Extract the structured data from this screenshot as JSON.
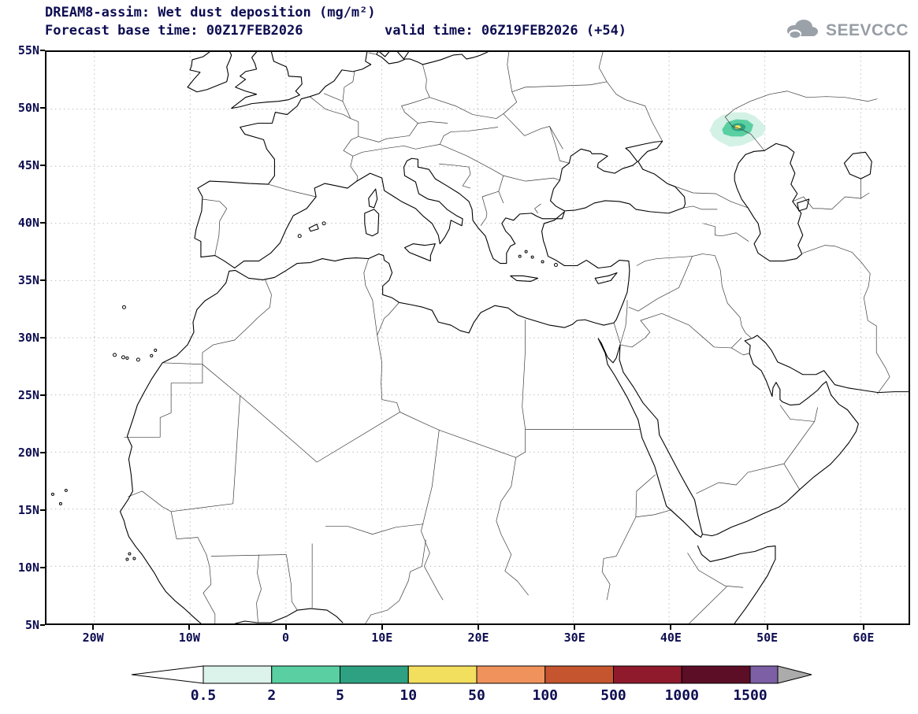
{
  "colors": {
    "text": "#0d0d52",
    "coast": "#000000",
    "border_line": "#3c3c3c",
    "grid": "#bcbcbc",
    "logo_gray": "#979ea6"
  },
  "header": {
    "title_line1": "DREAM8-assim: Wet dust deposition (mg/m²)",
    "forecast_base": "Forecast base time: 00Z17FEB2026",
    "valid_time": "valid time: 06Z19FEB2026 (+54)",
    "logo_text": "SEEVCCC"
  },
  "map": {
    "x_tick_labels": [
      "20W",
      "10W",
      "0",
      "10E",
      "20E",
      "30E",
      "40E",
      "50E",
      "60E"
    ],
    "y_tick_labels": [
      "55N",
      "50N",
      "45N",
      "40N",
      "35N",
      "30N",
      "25N",
      "20N",
      "15N",
      "10N",
      "5N"
    ]
  },
  "colorbar": {
    "tick_labels": [
      "0.5",
      "2",
      "5",
      "10",
      "50",
      "100",
      "500",
      "1000",
      "1500"
    ],
    "segments": [
      "#dbf3ea",
      "#59cfa2",
      "#2ea182",
      "#f2df5e",
      "#f0925c",
      "#c5552f",
      "#8e1a2c",
      "#5c0e26",
      "#7c5fa5"
    ],
    "left_arrow_color": "#ffffff",
    "right_arrow_color": "#ababab"
  },
  "plume": {
    "location": "north of the Caspian Sea",
    "levels": [
      {
        "range": "0.5-2",
        "color": "#d4f1e6"
      },
      {
        "range": "2-5",
        "color": "#59cfa2"
      },
      {
        "range": "5-10",
        "color": "#2ea182"
      },
      {
        "range": "10-50",
        "color": "#f2df5e"
      }
    ]
  },
  "chart_data": {
    "type": "map",
    "model": "DREAM8-assim",
    "variable": "Wet dust deposition (mg/m²)",
    "forecast_base_time": "00Z17FEB2026",
    "valid_time": "06Z19FEB2026 (+54)",
    "extent": {
      "lon": [
        -25,
        65
      ],
      "lat": [
        5,
        55
      ]
    },
    "grid_spacing_deg": {
      "lon": 10,
      "lat": 5
    },
    "scale_values": [
      0.5,
      2,
      5,
      10,
      50,
      100,
      500,
      1000,
      1500
    ],
    "plume_center": {
      "lon": 47,
      "lat": 48.2
    },
    "plume_max_range": "10-50"
  }
}
